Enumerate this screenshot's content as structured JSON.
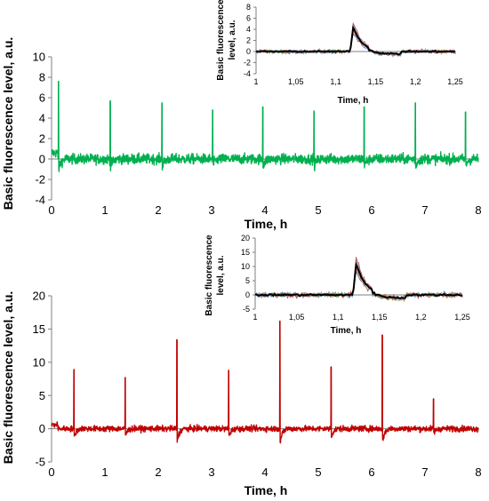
{
  "chart_data": [
    {
      "id": "top-main",
      "type": "line",
      "title": "",
      "xlabel": "Time, h",
      "ylabel": "Basic fluorescence level, a.u.",
      "xlim": [
        0,
        8
      ],
      "ylim": [
        -4,
        10
      ],
      "x_ticks": [
        "0",
        "1",
        "2",
        "3",
        "4",
        "5",
        "6",
        "7",
        "8"
      ],
      "y_ticks": [
        "-4",
        "-2",
        "0",
        "2",
        "4",
        "6",
        "8",
        "10"
      ],
      "color": "#00b050",
      "baseline": 0,
      "noise_amplitude": 0.9,
      "spikes": [
        {
          "x": 0.13,
          "y": 7.6
        },
        {
          "x": 1.1,
          "y": 5.7
        },
        {
          "x": 2.07,
          "y": 5.5
        },
        {
          "x": 3.02,
          "y": 4.8
        },
        {
          "x": 3.96,
          "y": 5.1
        },
        {
          "x": 4.92,
          "y": 4.7
        },
        {
          "x": 5.86,
          "y": 5.1
        },
        {
          "x": 6.82,
          "y": 5.5
        },
        {
          "x": 7.76,
          "y": 4.6
        }
      ]
    },
    {
      "id": "top-inset",
      "type": "line",
      "title": "",
      "xlabel": "Time, h",
      "ylabel": "Basic fluorescence level, a.u.",
      "xlim": [
        1,
        1.25
      ],
      "ylim": [
        -4,
        8
      ],
      "x_ticks": [
        "1",
        "1,05",
        "1,1",
        "1,15",
        "1,2",
        "1,25"
      ],
      "y_ticks": [
        "-4",
        "-2",
        "0",
        "2",
        "4",
        "6",
        "8"
      ],
      "peak_x": 1.122,
      "peak_y": 4.4,
      "series_colors": [
        "#4472c4",
        "#ed7d31",
        "#a5a5a5",
        "#70ad47",
        "#5b9bd5",
        "#c0504d"
      ],
      "mean_color": "#000000"
    },
    {
      "id": "bottom-main",
      "type": "line",
      "title": "",
      "xlabel": "Time, h",
      "ylabel": "Basic fluorescence level, a.u.",
      "xlim": [
        0,
        8
      ],
      "ylim": [
        -5,
        20
      ],
      "x_ticks": [
        "0",
        "1",
        "2",
        "3",
        "4",
        "5",
        "6",
        "7",
        "8"
      ],
      "y_ticks": [
        "-5",
        "0",
        "5",
        "10",
        "15",
        "20"
      ],
      "color": "#c00000",
      "baseline": 0,
      "noise_amplitude": 0.8,
      "spikes": [
        {
          "x": 0.42,
          "y": 8.9
        },
        {
          "x": 1.38,
          "y": 7.7
        },
        {
          "x": 2.35,
          "y": 13.4
        },
        {
          "x": 3.32,
          "y": 8.8
        },
        {
          "x": 4.28,
          "y": 16.2
        },
        {
          "x": 5.24,
          "y": 9.3
        },
        {
          "x": 6.2,
          "y": 14.1
        },
        {
          "x": 7.16,
          "y": 4.5
        }
      ]
    },
    {
      "id": "bottom-inset",
      "type": "line",
      "title": "",
      "xlabel": "Time, h",
      "ylabel": "Basic fluorescence level, a.u.",
      "xlim": [
        1,
        1.25
      ],
      "ylim": [
        -5,
        20
      ],
      "x_ticks": [
        "1",
        "1,05",
        "1,1",
        "1,15",
        "1,2",
        "1,25"
      ],
      "y_ticks": [
        "-5",
        "0",
        "5",
        "10",
        "15",
        "20"
      ],
      "peak_x": 1.122,
      "peak_y": 11.0,
      "series_colors": [
        "#4472c4",
        "#ed7d31",
        "#a5a5a5",
        "#70ad47",
        "#5b9bd5",
        "#c0504d"
      ],
      "mean_color": "#000000"
    }
  ]
}
